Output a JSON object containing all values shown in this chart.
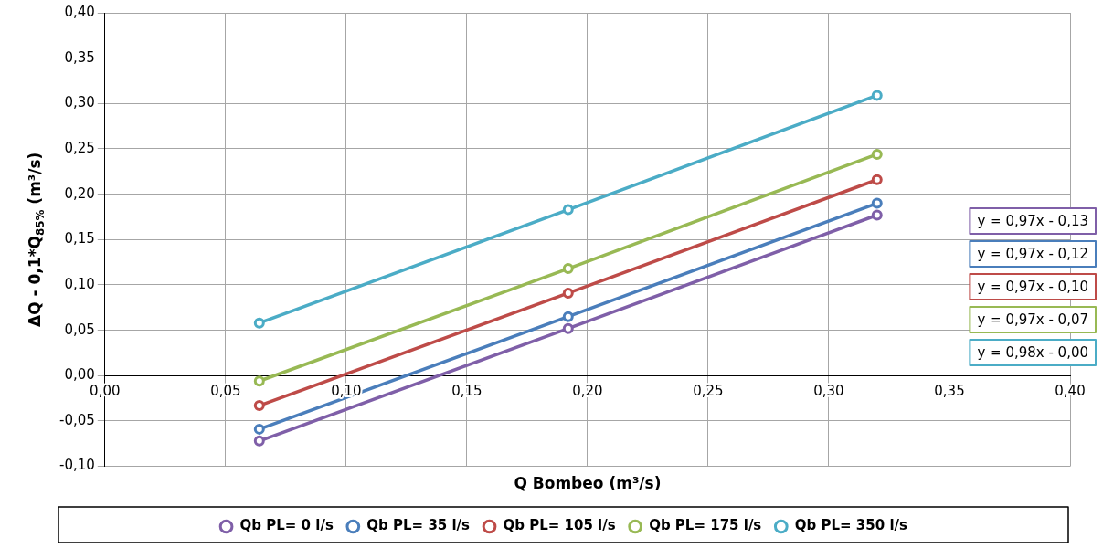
{
  "chart_data": {
    "type": "line",
    "xlabel": "Q Bombeo (m³/s)",
    "ylabel": "ΔQ - 0,1*Q$_{85%}$ (m³/s)",
    "xlim": [
      0,
      0.4
    ],
    "xticks": [
      {
        "value": 0,
        "label": "0,00"
      },
      {
        "value": 0.05,
        "label": "0,05"
      },
      {
        "value": 0.1,
        "label": "0,10"
      },
      {
        "value": 0.15,
        "label": "0,15"
      },
      {
        "value": 0.2,
        "label": "0,20"
      },
      {
        "value": 0.25,
        "label": "0,25"
      },
      {
        "value": 0.3,
        "label": "0,30"
      },
      {
        "value": 0.35,
        "label": "0,35"
      },
      {
        "value": 0.4,
        "label": "0,40"
      }
    ],
    "ylim": [
      -0.1,
      0.4
    ],
    "yticks": [
      {
        "value": -0.1,
        "label": "-0,10"
      },
      {
        "value": -0.05,
        "label": "-0,05"
      },
      {
        "value": 0,
        "label": "0,00"
      },
      {
        "value": 0.05,
        "label": "0,05"
      },
      {
        "value": 0.1,
        "label": "0,10"
      },
      {
        "value": 0.15,
        "label": "0,15"
      },
      {
        "value": 0.2,
        "label": "0,20"
      },
      {
        "value": 0.25,
        "label": "0,25"
      },
      {
        "value": 0.3,
        "label": "0,30"
      },
      {
        "value": 0.35,
        "label": "0,35"
      },
      {
        "value": 0.4,
        "label": "0,40"
      }
    ],
    "x": [
      0.064,
      0.192,
      0.32
    ],
    "series": [
      {
        "name": "Qb PL= 0 l/s",
        "color": "#7f5fa8",
        "values": [
          -0.072,
          0.052,
          0.177
        ]
      },
      {
        "name": "Qb PL= 35 l/s",
        "color": "#4a7ebb",
        "values": [
          -0.059,
          0.065,
          0.19
        ]
      },
      {
        "name": "Qb PL= 105 l/s",
        "color": "#be4b48",
        "values": [
          -0.033,
          0.091,
          0.216
        ]
      },
      {
        "name": "Qb PL= 175 l/s",
        "color": "#98b954",
        "values": [
          -0.006,
          0.118,
          0.244
        ]
      },
      {
        "name": "Qb PL= 350 l/s",
        "color": "#4bacc6",
        "values": [
          0.058,
          0.183,
          0.309
        ]
      }
    ],
    "annotations": [
      "y = 0,97x - 0,13",
      "y = 0,97x - 0,12",
      "y = 0,97x - 0,10",
      "y = 0,97x - 0,07",
      "y = 0,98x - 0,00"
    ],
    "grid": true,
    "legend": "bottom",
    "marker": "circle",
    "line_style": "solid"
  }
}
